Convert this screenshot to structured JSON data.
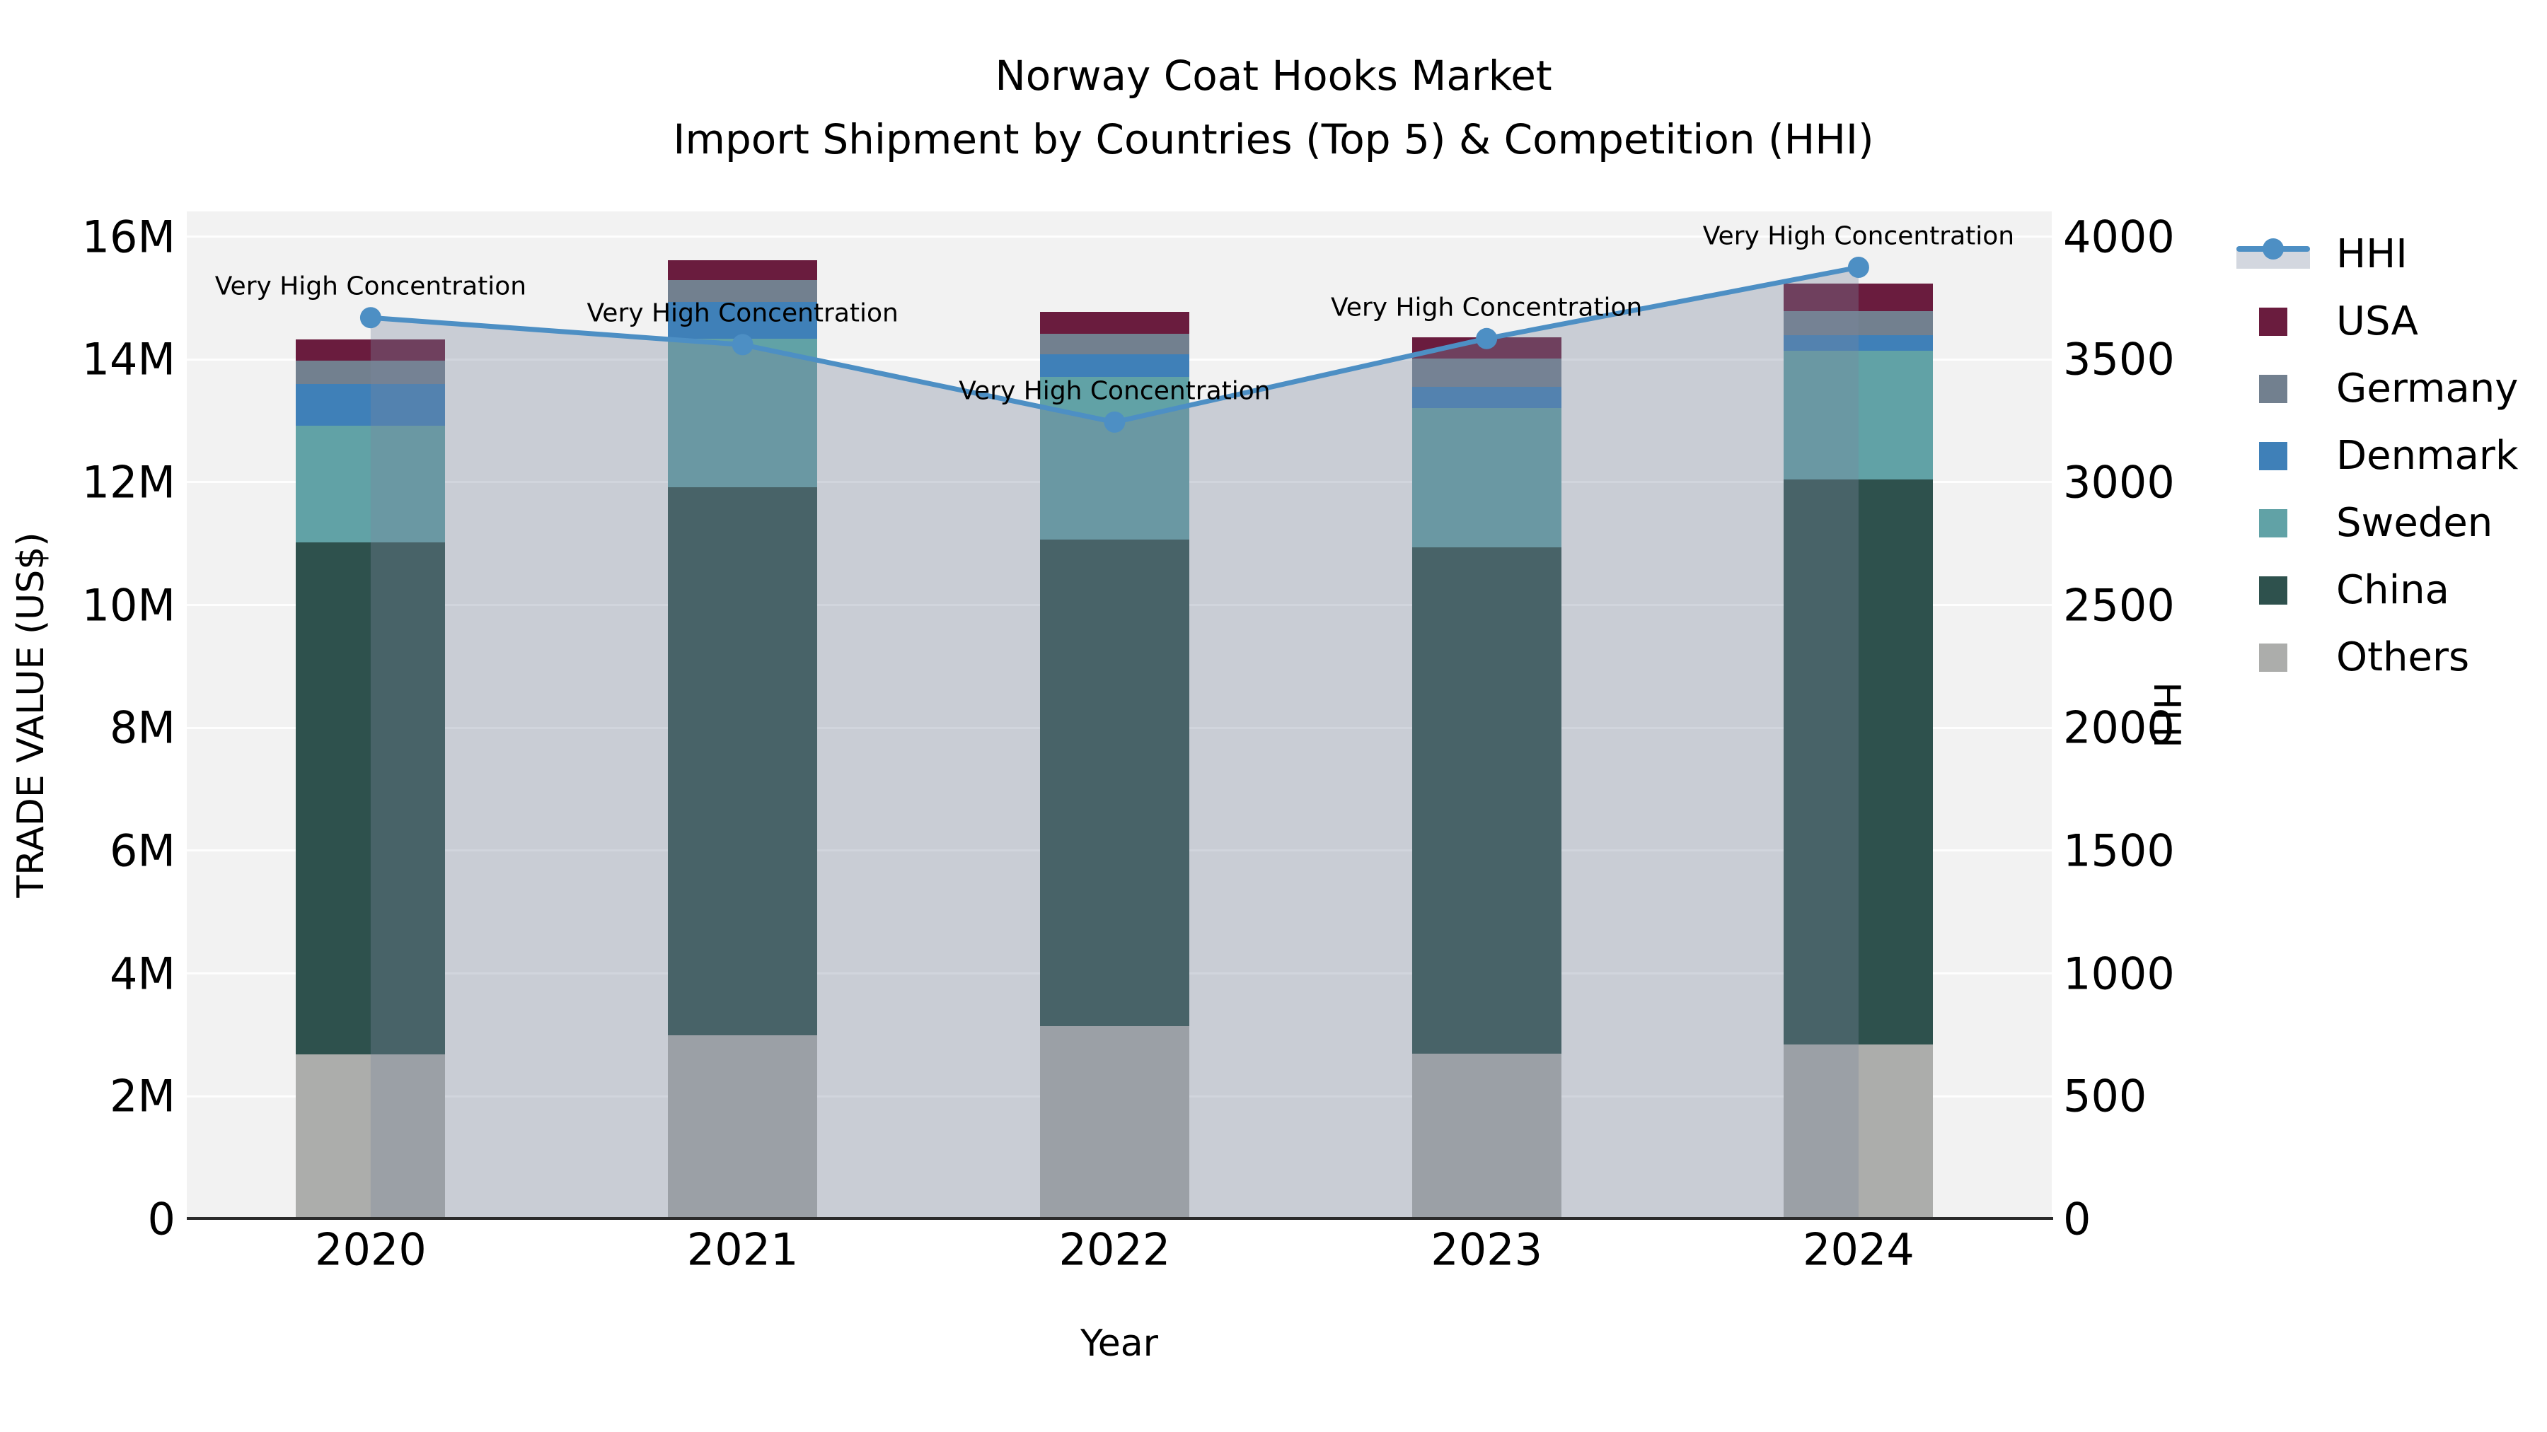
{
  "title": {
    "line1": "Norway Coat Hooks Market",
    "line2": "Import Shipment by Countries (Top 5) & Competition (HHI)"
  },
  "axes": {
    "y_left": {
      "title": "TRADE VALUE (US$)",
      "tick_labels": [
        "0",
        "2M",
        "4M",
        "6M",
        "8M",
        "10M",
        "12M",
        "14M",
        "16M"
      ]
    },
    "y_right": {
      "title": "HHI",
      "tick_labels": [
        "0",
        "500",
        "1000",
        "1500",
        "2000",
        "2500",
        "3000",
        "3500",
        "4000"
      ]
    },
    "x": {
      "title": "Year",
      "tick_labels": [
        "2020",
        "2021",
        "2022",
        "2023",
        "2024"
      ]
    }
  },
  "legend": {
    "items": [
      {
        "label": "HHI",
        "color": "#4d8fc4",
        "swatch": "line"
      },
      {
        "label": "USA",
        "color": "#6a1c3e",
        "swatch": "square"
      },
      {
        "label": "Germany",
        "color": "#72808f",
        "swatch": "square"
      },
      {
        "label": "Denmark",
        "color": "#3f80b8",
        "swatch": "square"
      },
      {
        "label": "Sweden",
        "color": "#61a2a6",
        "swatch": "square"
      },
      {
        "label": "China",
        "color": "#2e514d",
        "swatch": "square"
      },
      {
        "label": "Others",
        "color": "#acadab",
        "swatch": "square"
      }
    ]
  },
  "chart_data": {
    "type": "bar",
    "subtype": "stacked bars (left axis) + line with markers and area fill (right axis)",
    "title": "Norway Coat Hooks Market — Import Shipment by Countries (Top 5) & Competition (HHI)",
    "categories": [
      "2020",
      "2021",
      "2022",
      "2023",
      "2024"
    ],
    "xlabel": "Year",
    "ylabel_left": "TRADE VALUE (US$)",
    "ylabel_right": "HHI",
    "ylim_left_usd": [
      0,
      16000000
    ],
    "ylim_right_hhi": [
      0,
      4000
    ],
    "grid": "horizontal white gridlines every 2M",
    "legend_position": "outside right",
    "plot_background": "#f2f2f2",
    "stack_order_bottom_to_top": [
      "Others",
      "China",
      "Sweden",
      "Denmark",
      "Germany",
      "USA"
    ],
    "series": [
      {
        "name": "Others",
        "unit": "USD millions",
        "color": "#acadab",
        "values": [
          2.68,
          2.99,
          3.14,
          2.7,
          2.84
        ]
      },
      {
        "name": "China",
        "unit": "USD millions",
        "color": "#2e514d",
        "values": [
          8.34,
          8.93,
          7.93,
          8.24,
          9.21
        ]
      },
      {
        "name": "Sweden",
        "unit": "USD millions",
        "color": "#61a2a6",
        "values": [
          1.9,
          2.42,
          2.64,
          2.27,
          2.09
        ]
      },
      {
        "name": "Denmark",
        "unit": "USD millions",
        "color": "#3f80b8",
        "values": [
          0.68,
          0.6,
          0.38,
          0.34,
          0.26
        ]
      },
      {
        "name": "Germany",
        "unit": "USD millions",
        "color": "#72808f",
        "values": [
          0.38,
          0.35,
          0.33,
          0.46,
          0.39
        ]
      },
      {
        "name": "USA",
        "unit": "USD millions",
        "color": "#6a1c3e",
        "values": [
          0.35,
          0.33,
          0.36,
          0.35,
          0.45
        ]
      }
    ],
    "bar_totals_usd_millions": [
      14.33,
      15.62,
      14.78,
      14.36,
      15.24
    ],
    "line_series": {
      "name": "HHI",
      "axis": "right",
      "color": "#4d8fc4",
      "area_fill_color": "#7a869d",
      "area_fill_opacity": 0.34,
      "values": [
        3670,
        3560,
        3245,
        3585,
        3875
      ],
      "point_annotations": [
        "Very High Concentration",
        "Very High Concentration",
        "Very High Concentration",
        "Very High Concentration",
        "Very High Concentration"
      ]
    }
  }
}
